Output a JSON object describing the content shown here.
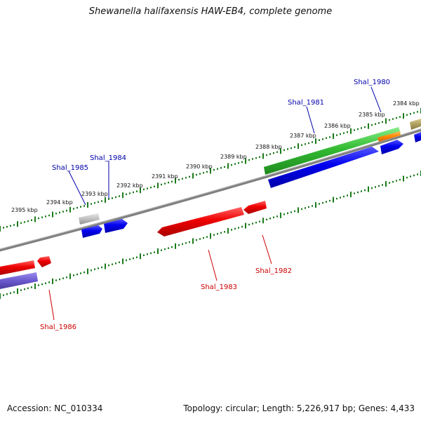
{
  "title": "Shewanella halifaxensis HAW-EB4, complete genome",
  "footer": {
    "accession": "Accession: NC_010334",
    "topology": "Topology: circular; Length: 5,226,917 bp; Genes: 4,433"
  },
  "colors": {
    "backbone": "#808080",
    "tick": "#1a7a1a",
    "forward_label": "#0000aa",
    "reverse_label": "#cc0000",
    "gene_blue": "#0000dd",
    "gene_red": "#ee0000",
    "gene_green": "#33bb33",
    "gene_orange": "#ff8800",
    "gene_grey": "#c0c0c0",
    "gene_khaki": "#b0a060",
    "gene_violet": "#6a5acd"
  },
  "kbp_labels": [
    "2395 kbp",
    "2394 kbp",
    "2393 kbp",
    "2392 kbp",
    "2391 kbp",
    "2390 kbp",
    "2389 kbp",
    "2388 kbp",
    "2387 kbp",
    "2386 kbp",
    "2385 kbp",
    "2384 kbp"
  ],
  "gene_labels": {
    "forward": [
      "Shal_1985",
      "Shal_1984",
      "Shal_1981",
      "Shal_1980"
    ],
    "reverse": [
      "Shal_1986",
      "Shal_1983",
      "Shal_1982"
    ]
  }
}
